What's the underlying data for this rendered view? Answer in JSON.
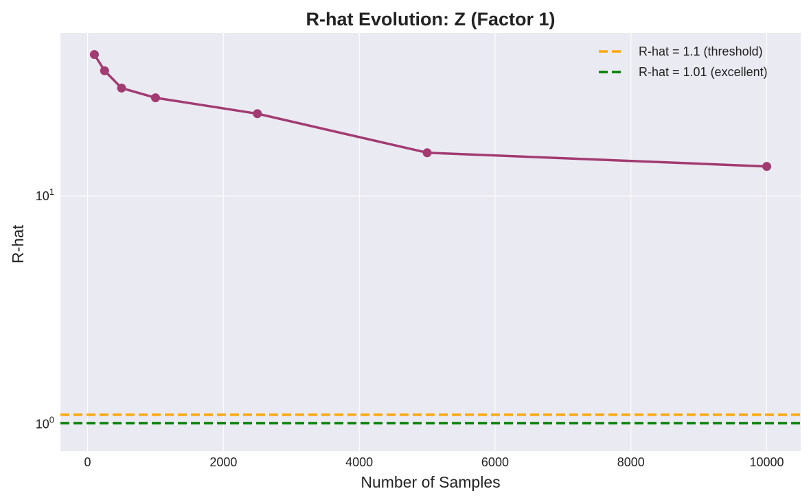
{
  "chart_data": {
    "type": "line",
    "title": "R-hat Evolution: Z (Factor 1)",
    "xlabel": "Number of Samples",
    "ylabel": "R-hat",
    "yscale": "log",
    "xlim": [
      -400,
      10500
    ],
    "ylim": [
      0.76,
      52
    ],
    "grid": true,
    "legend_position": "top-right",
    "x_ticks": [
      {
        "value": 0,
        "label": "0"
      },
      {
        "value": 2000,
        "label": "2000"
      },
      {
        "value": 4000,
        "label": "4000"
      },
      {
        "value": 6000,
        "label": "6000"
      },
      {
        "value": 8000,
        "label": "8000"
      },
      {
        "value": 10000,
        "label": "10000"
      }
    ],
    "y_ticks": [
      {
        "value": 1,
        "base": "10",
        "exp": "0"
      },
      {
        "value": 10,
        "base": "10",
        "exp": "1"
      }
    ],
    "series": [
      {
        "color": "#a23b72",
        "x": [
          100,
          250,
          500,
          1000,
          2500,
          5000,
          10000
        ],
        "y": [
          41.8,
          35.5,
          29.8,
          27.0,
          23.0,
          15.5,
          13.5
        ]
      }
    ],
    "reference_lines": [
      {
        "name": "R-hat = 1.1 (threshold)",
        "value": 1.1,
        "color": "#ffa500"
      },
      {
        "name": "R-hat = 1.01 (excellent)",
        "value": 1.01,
        "color": "#008000"
      }
    ]
  }
}
